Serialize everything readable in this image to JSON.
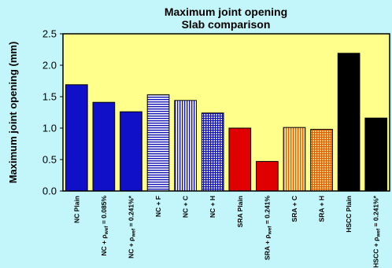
{
  "chart_data": {
    "type": "bar",
    "title": "Maximum joint opening",
    "subtitle": "Slab comparison",
    "ylabel": "Maximum joint opening (mm)",
    "xlabel": "",
    "ylim": [
      0,
      2.5
    ],
    "yticks": [
      "0.0",
      "0.5",
      "1.0",
      "1.5",
      "2.0",
      "2.5"
    ],
    "legend": "none",
    "grid": false,
    "background_color": "#c2f6fa",
    "plot_color": "#ffff8c",
    "categories": [
      "NC Plain",
      "NC + ρwef = 0.085%",
      "NC + ρwef = 0.241%*",
      "NC + F",
      "NC + C",
      "NC + H",
      "SRA Plain",
      "SRA + ρwef = 0.241%",
      "SRA + C",
      "SRA + H",
      "HSCC Plain",
      "HSCC + ρwef = 0.241%*"
    ],
    "values": [
      1.69,
      1.41,
      1.26,
      1.53,
      1.44,
      1.24,
      1.0,
      0.47,
      1.01,
      0.98,
      2.19,
      1.16
    ],
    "bar_styles": [
      {
        "color": "#1010c8",
        "pattern": "solid"
      },
      {
        "color": "#1010c8",
        "pattern": "solid"
      },
      {
        "color": "#1010c8",
        "pattern": "solid"
      },
      {
        "color": "#1414b4",
        "pattern": "horizontal-stripes"
      },
      {
        "color": "#1414b4",
        "pattern": "vertical-stripes"
      },
      {
        "color": "#1414b4",
        "pattern": "grid"
      },
      {
        "color": "#e00000",
        "pattern": "solid"
      },
      {
        "color": "#e00000",
        "pattern": "solid"
      },
      {
        "color": "#e06000",
        "pattern": "vertical-stripes"
      },
      {
        "color": "#e06000",
        "pattern": "grid"
      },
      {
        "color": "#000000",
        "pattern": "solid"
      },
      {
        "color": "#000000",
        "pattern": "solid"
      }
    ]
  }
}
